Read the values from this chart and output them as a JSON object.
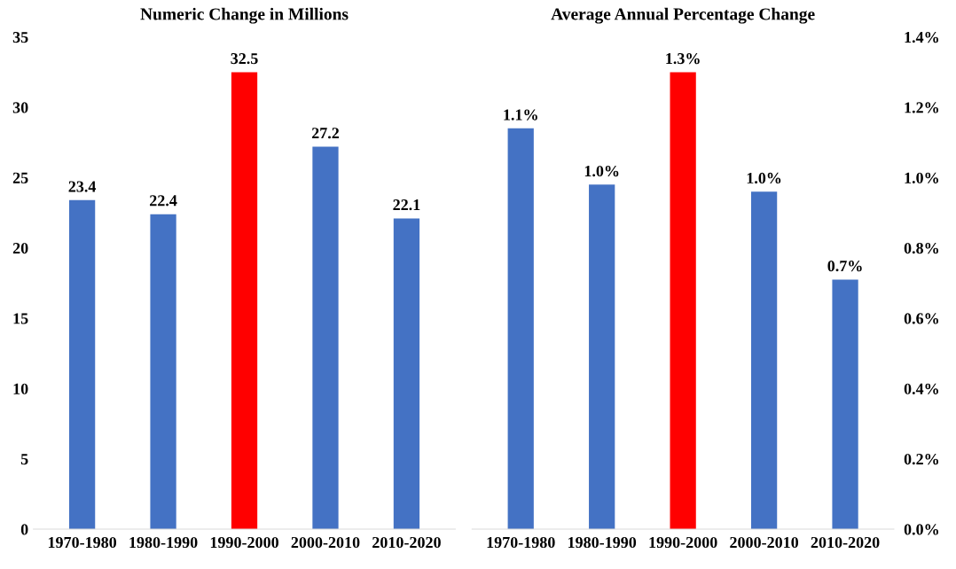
{
  "chart_data": [
    {
      "type": "bar",
      "title": "Numeric Change in Millions",
      "categories": [
        "1970-1980",
        "1980-1990",
        "1990-2000",
        "2000-2010",
        "2010-2020"
      ],
      "values": [
        23.4,
        22.4,
        32.5,
        27.2,
        22.1
      ],
      "colors": [
        "#4472c4",
        "#4472c4",
        "#ff0000",
        "#4472c4",
        "#4472c4"
      ],
      "ylim": [
        0,
        35
      ],
      "yticks": [
        0,
        5,
        10,
        15,
        20,
        25,
        30,
        35
      ],
      "data_labels": true,
      "grid": false,
      "legend": false
    },
    {
      "type": "bar",
      "title": "Average Annual Percentage Change",
      "categories": [
        "1970-1980",
        "1980-1990",
        "1990-2000",
        "2000-2010",
        "2010-2020"
      ],
      "series": [
        {
          "axis": "y2",
          "values": [
            1.14,
            0.98,
            1.3,
            0.96,
            0.71
          ],
          "value_labels": [
            "1.1%",
            "1.0%",
            "1.3%",
            "1.0%",
            "0.7%"
          ],
          "colors": [
            "#4472c4",
            "#4472c4",
            "#ff0000",
            "#4472c4",
            "#4472c4"
          ]
        }
      ],
      "y2lim": [
        0,
        1.4
      ],
      "y2ticks": [
        {
          "value": 0,
          "label": "0.0%"
        },
        {
          "value": 0.2,
          "label": "0.2%"
        },
        {
          "value": 0.4,
          "label": "0.4%"
        },
        {
          "value": 0.6,
          "label": "0.6%"
        },
        {
          "value": 0.8,
          "label": "0.8%"
        },
        {
          "value": 1.0,
          "label": "1.0%"
        },
        {
          "value": 1.2,
          "label": "1.2%"
        },
        {
          "value": 1.4,
          "label": "1.4%"
        }
      ],
      "grid": false,
      "legend": false
    }
  ]
}
